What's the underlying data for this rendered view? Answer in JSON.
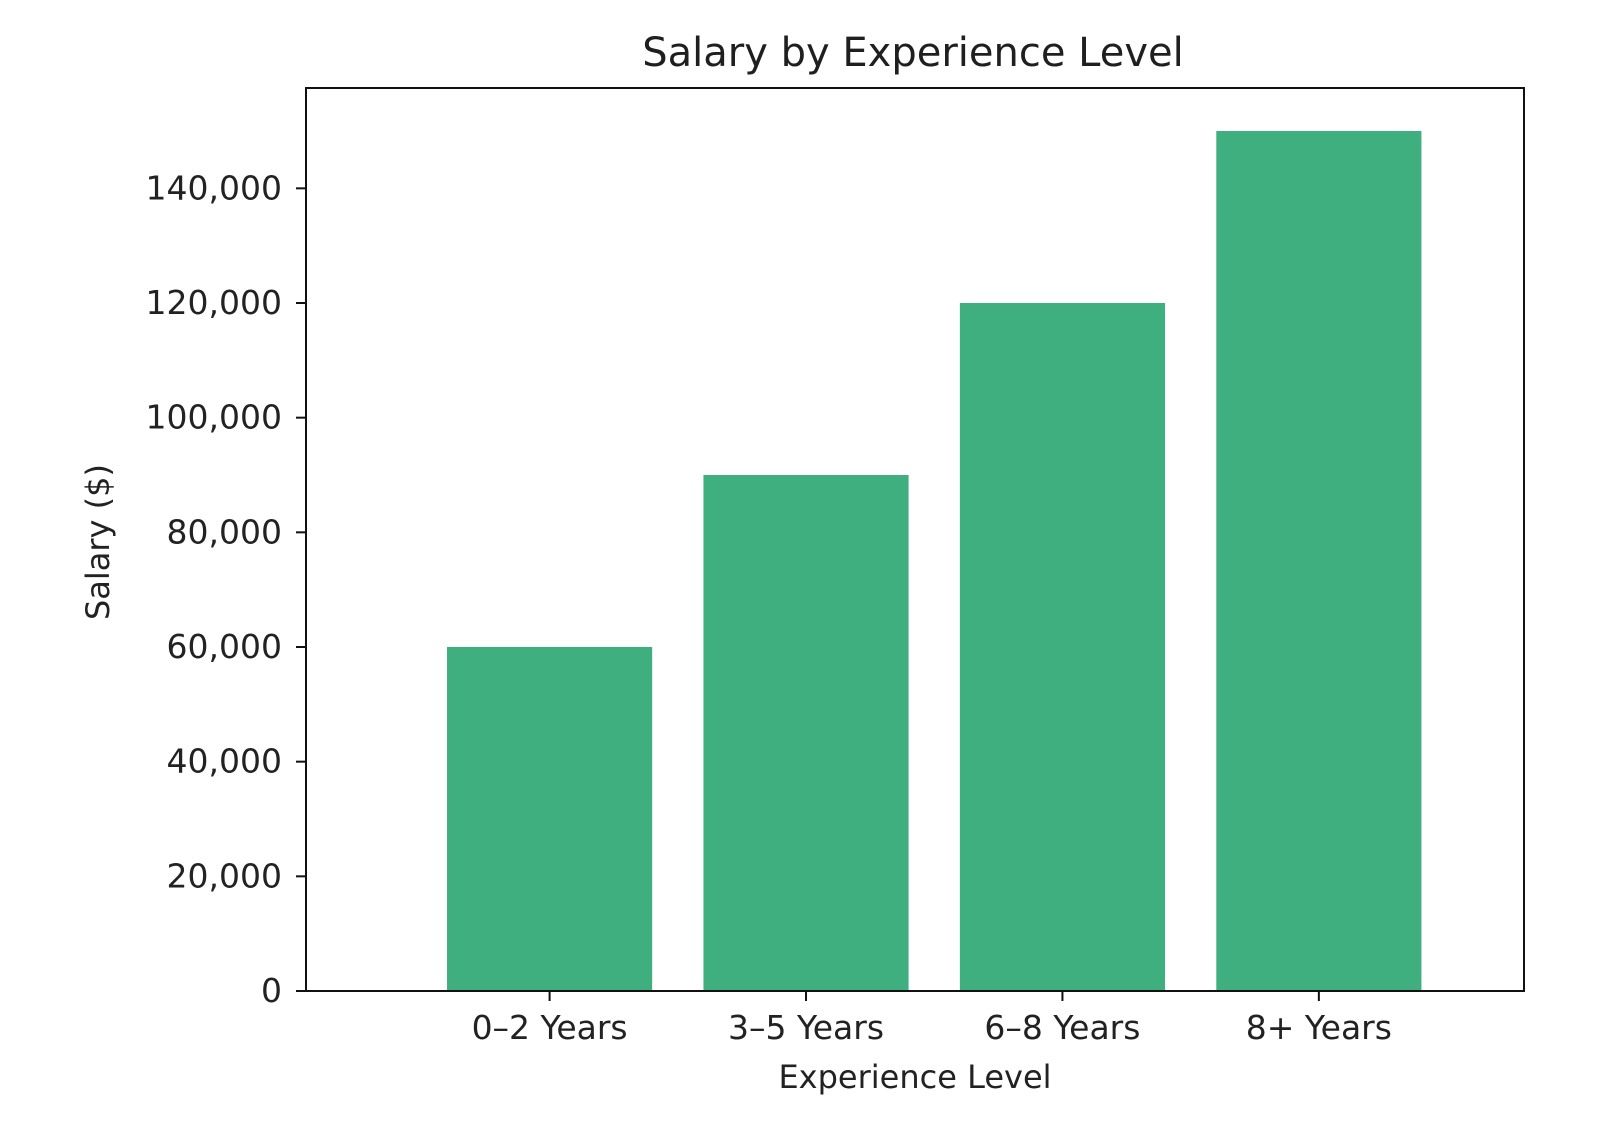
{
  "chart_data": {
    "type": "bar",
    "title": "Salary by Experience Level",
    "xlabel": "Experience Level",
    "ylabel": "Salary ($)",
    "categories": [
      "0–2 Years",
      "3–5 Years",
      "6–8 Years",
      "8+ Years"
    ],
    "values": [
      60000,
      90000,
      120000,
      150000
    ],
    "ylim": [
      0,
      157500
    ],
    "yticks": [
      0,
      20000,
      40000,
      60000,
      80000,
      100000,
      120000,
      140000
    ],
    "ytick_labels": [
      "0",
      "20,000",
      "40,000",
      "60,000",
      "80,000",
      "100,000",
      "120,000",
      "140,000"
    ],
    "bar_color": "#3faf80",
    "grid": false,
    "legend": "none"
  }
}
